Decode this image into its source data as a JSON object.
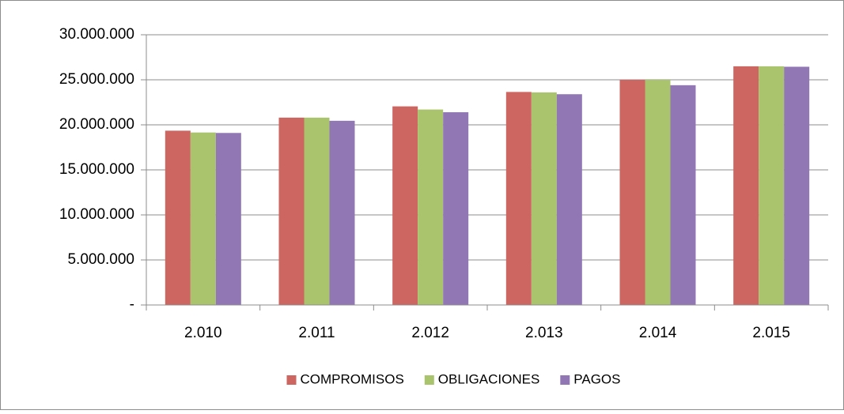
{
  "chart_data": {
    "type": "bar",
    "categories": [
      "2.010",
      "2.011",
      "2.012",
      "2.013",
      "2.014",
      "2.015"
    ],
    "series": [
      {
        "name": "COMPROMISOS",
        "color": "#cd6561",
        "values": [
          19350000,
          20800000,
          22050000,
          23650000,
          25000000,
          26500000
        ]
      },
      {
        "name": "OBLIGACIONES",
        "color": "#a9c46c",
        "values": [
          19150000,
          20800000,
          21700000,
          23600000,
          25000000,
          26500000
        ]
      },
      {
        "name": "PAGOS",
        "color": "#9178b5",
        "values": [
          19100000,
          20450000,
          21400000,
          23400000,
          24400000,
          26450000
        ]
      }
    ],
    "ylim": [
      0,
      30000000
    ],
    "yticks": [
      {
        "value": 0,
        "label": "-"
      },
      {
        "value": 5000000,
        "label": "5.000.000"
      },
      {
        "value": 10000000,
        "label": "10.000.000"
      },
      {
        "value": 15000000,
        "label": "15.000.000"
      },
      {
        "value": 20000000,
        "label": "20.000.000"
      },
      {
        "value": 25000000,
        "label": "25.000.000"
      },
      {
        "value": 30000000,
        "label": "30.000.000"
      }
    ],
    "grid": true,
    "legend": "bottom"
  }
}
